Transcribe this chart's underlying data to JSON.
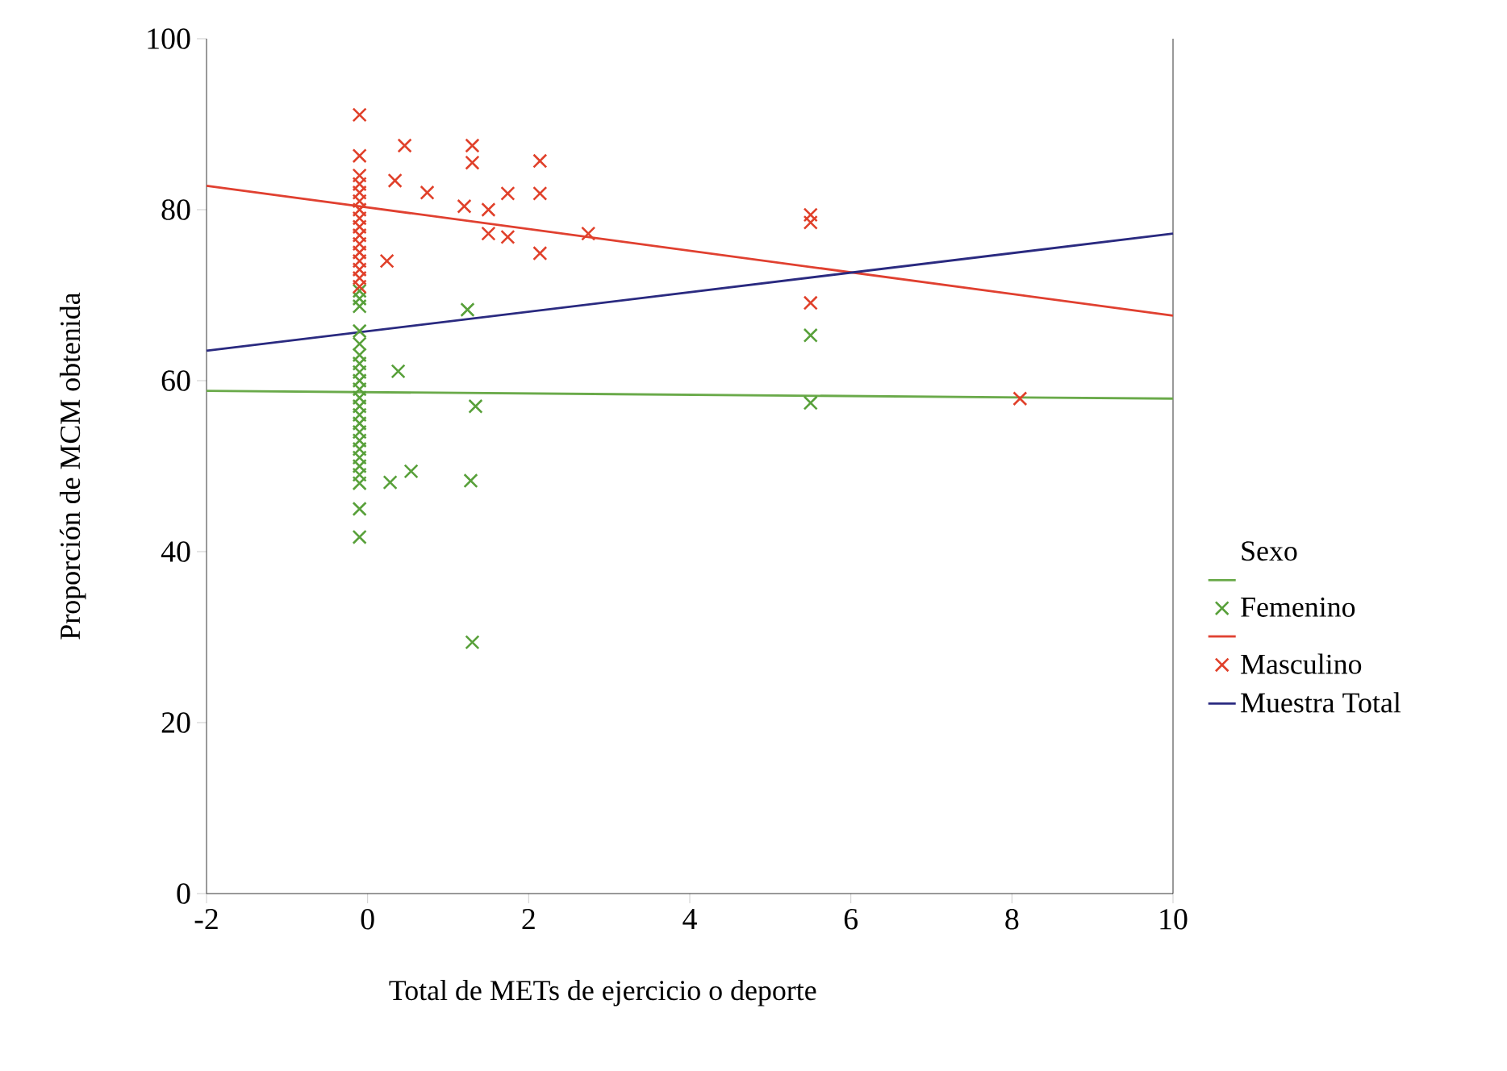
{
  "chart_data": {
    "type": "scatter",
    "xlabel": "Total de METs de ejercicio o deporte",
    "ylabel": "Proporción de MCM obtenida",
    "legend_title": "Sexo",
    "legend": "right",
    "marker": "cross",
    "xlim": [
      -2,
      10
    ],
    "ylim": [
      0,
      100
    ],
    "xticks": [
      -2,
      0,
      2,
      4,
      6,
      8,
      10
    ],
    "yticks": [
      0,
      20,
      40,
      60,
      80,
      100
    ],
    "series": [
      {
        "type": "line",
        "marker": "none",
        "color": "#6aaa4a",
        "x": [
          -2,
          10
        ],
        "values": [
          58.8,
          57.9
        ]
      },
      {
        "name": "Femenino",
        "color": "#58a03a",
        "x": [
          -0.1,
          -0.1,
          -0.1,
          -0.1,
          -0.1,
          -0.1,
          -0.1,
          -0.1,
          -0.1,
          -0.1,
          -0.1,
          -0.1,
          -0.1,
          -0.1,
          -0.1,
          -0.1,
          -0.1,
          -0.1,
          -0.1,
          -0.1,
          -0.1,
          -0.1,
          -0.1,
          1.24,
          0.38,
          1.34,
          0.54,
          0.28,
          1.28,
          1.3,
          5.5,
          5.5
        ],
        "values": [
          70.5,
          69.6,
          68.7,
          65.8,
          64.3,
          63,
          62,
          61,
          60,
          59,
          58,
          57,
          56,
          55,
          54,
          53,
          52,
          51,
          50,
          49,
          48,
          45,
          41.7,
          68.3,
          61.1,
          57,
          49.4,
          48.1,
          48.3,
          29.4,
          65.3,
          57.4
        ]
      },
      {
        "type": "line",
        "marker": "none",
        "color": "#e04030",
        "x": [
          -2,
          10
        ],
        "values": [
          82.8,
          67.6
        ]
      },
      {
        "name": "Masculino",
        "color": "#e0402a",
        "x": [
          -0.1,
          -0.1,
          -0.1,
          -0.1,
          -0.1,
          -0.1,
          -0.1,
          -0.1,
          -0.1,
          -0.1,
          -0.1,
          -0.1,
          -0.1,
          -0.1,
          -0.1,
          -0.1,
          0.46,
          1.3,
          1.3,
          2.14,
          0.34,
          0.74,
          1.74,
          2.14,
          1.2,
          1.5,
          1.5,
          1.74,
          2.14,
          2.74,
          0.24,
          5.5,
          5.5,
          5.5,
          8.1
        ],
        "values": [
          91.1,
          86.3,
          84,
          83,
          82,
          81,
          80,
          79,
          78,
          77,
          76,
          75,
          74,
          73,
          72,
          71,
          87.5,
          87.5,
          85.5,
          85.7,
          83.4,
          82,
          81.9,
          81.9,
          80.4,
          80,
          77.2,
          76.8,
          74.9,
          77.2,
          74,
          78.5,
          79.4,
          69.1,
          57.9
        ]
      },
      {
        "name": "Muestra Total",
        "type": "line",
        "marker": "none",
        "color": "#2a2a80",
        "x": [
          -2,
          10
        ],
        "values": [
          63.5,
          77.2
        ]
      }
    ]
  }
}
